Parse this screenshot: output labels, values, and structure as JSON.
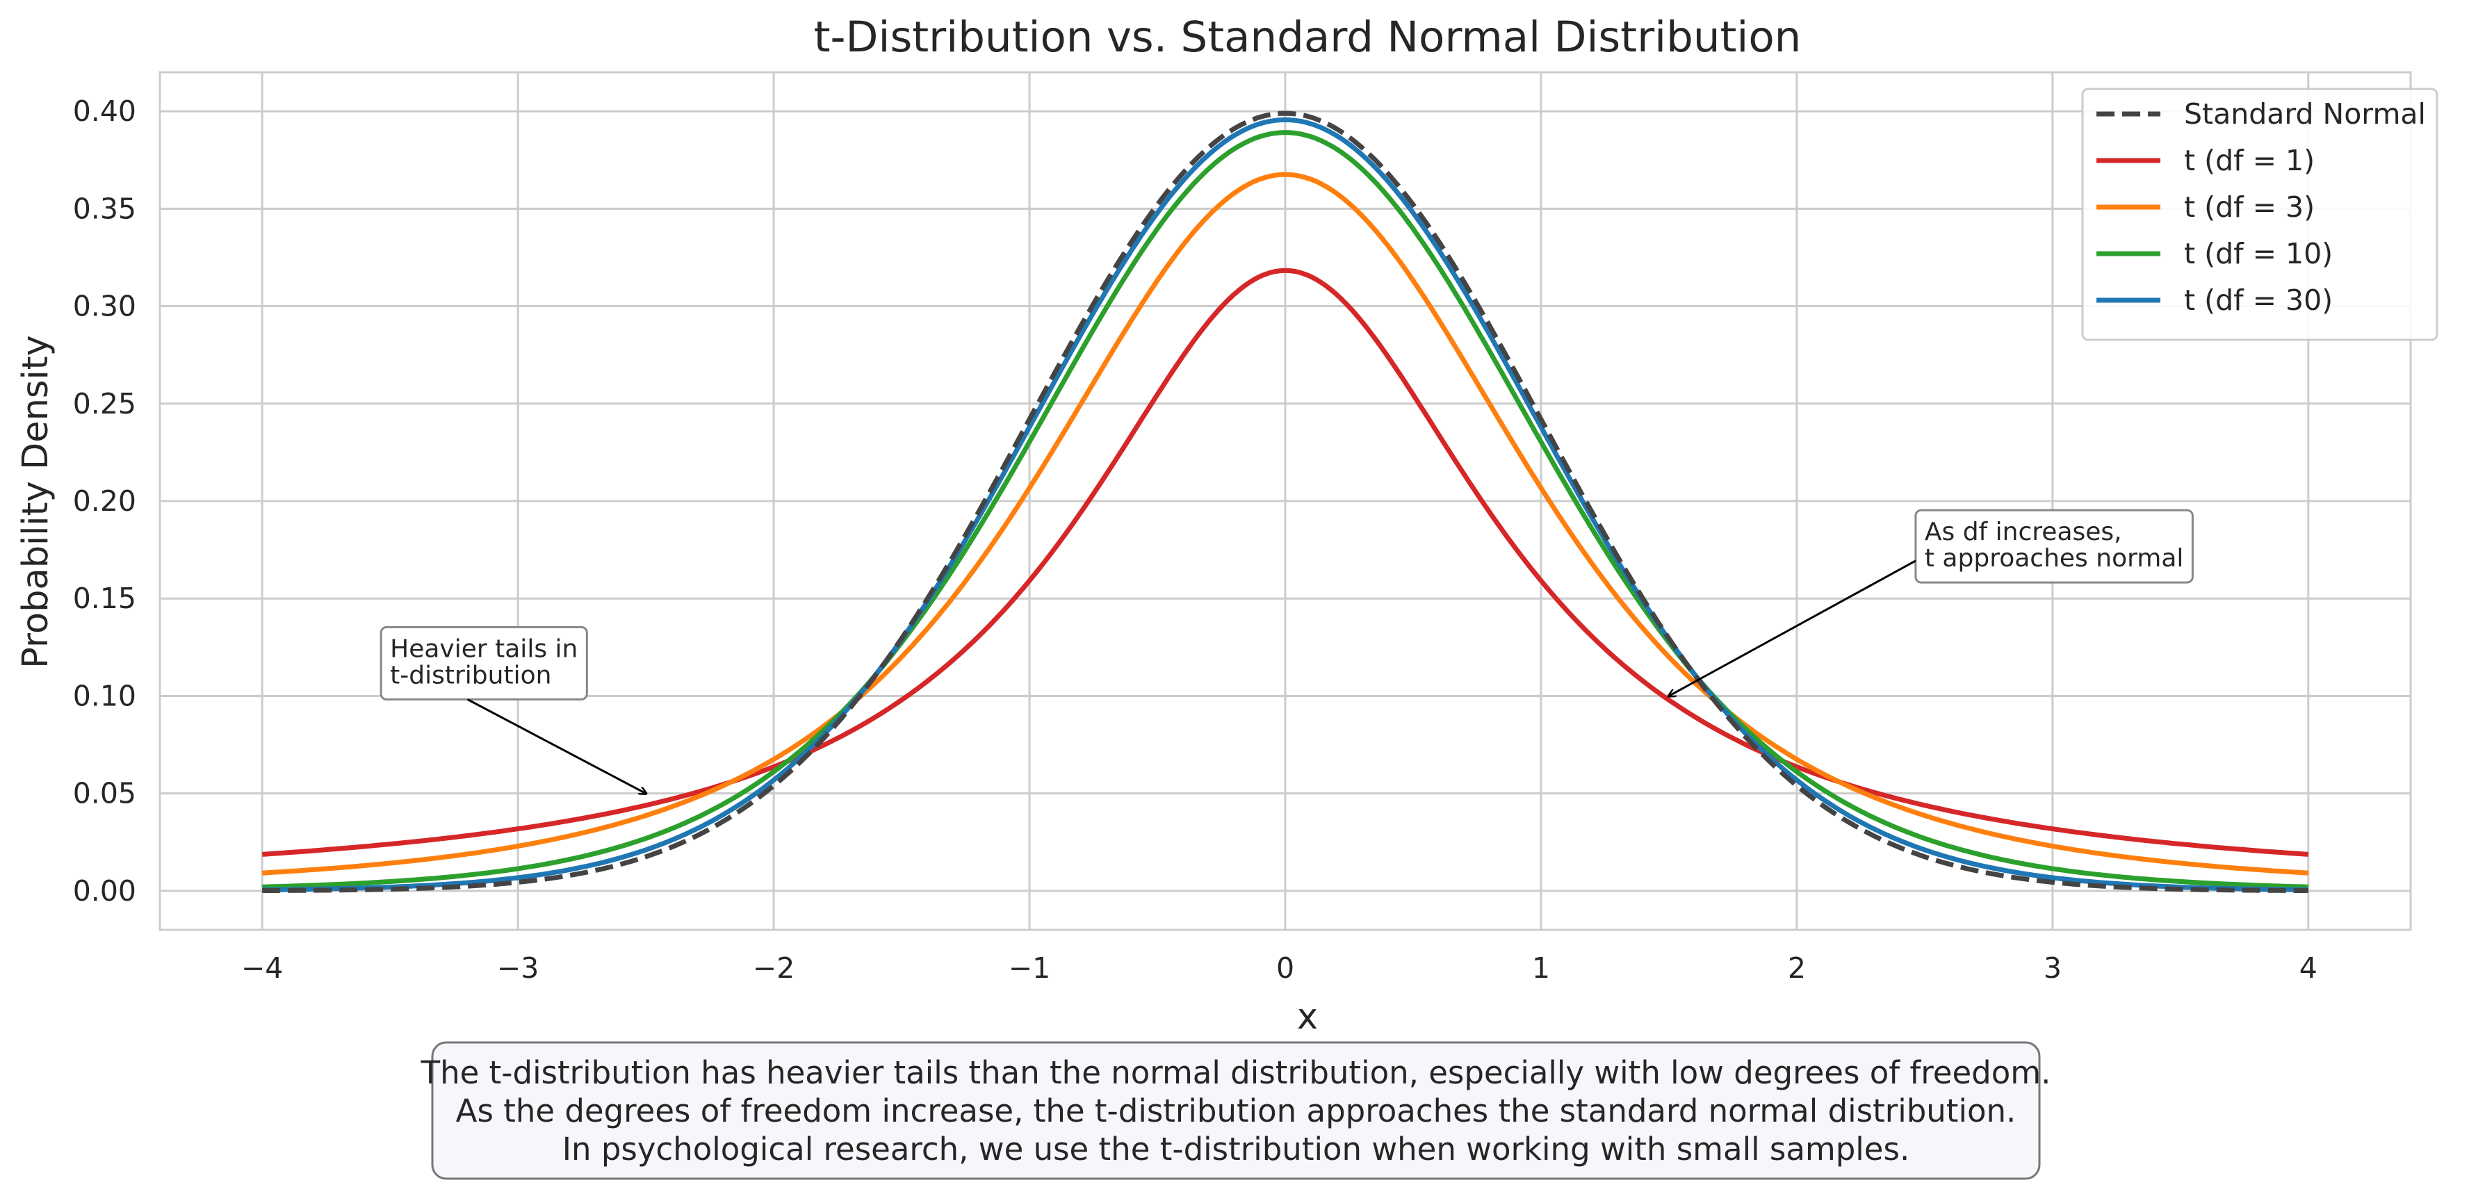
{
  "chart_data": {
    "type": "line",
    "title": "t-Distribution vs. Standard Normal Distribution",
    "xlabel": "x",
    "ylabel": "Probability Density",
    "xlim": [
      -4.4,
      4.4
    ],
    "ylim": [
      -0.02,
      0.42
    ],
    "grid": true,
    "legend_position": "top-right",
    "x_ticks": [
      -4,
      -3,
      -2,
      -1,
      0,
      1,
      2,
      3,
      4
    ],
    "x_tick_labels": [
      "−4",
      "−3",
      "−2",
      "−1",
      "0",
      "1",
      "2",
      "3",
      "4"
    ],
    "y_ticks": [
      0.0,
      0.05,
      0.1,
      0.15,
      0.2,
      0.25,
      0.3,
      0.35,
      0.4
    ],
    "y_tick_labels": [
      "0.00",
      "0.05",
      "0.10",
      "0.15",
      "0.20",
      "0.25",
      "0.30",
      "0.35",
      "0.40"
    ],
    "x_range": [
      -4,
      4
    ],
    "series": [
      {
        "name": "Standard Normal",
        "kind": "normal",
        "color": "#444444",
        "dashed": true
      },
      {
        "name": "t (df = 1)",
        "kind": "t",
        "df": 1,
        "color": "#d62728",
        "dashed": false
      },
      {
        "name": "t (df = 3)",
        "kind": "t",
        "df": 3,
        "color": "#ff7f0e",
        "dashed": false
      },
      {
        "name": "t (df = 10)",
        "kind": "t",
        "df": 10,
        "color": "#2ca02c",
        "dashed": false
      },
      {
        "name": "t (df = 30)",
        "kind": "t",
        "df": 30,
        "color": "#1f77b4",
        "dashed": false
      }
    ],
    "annotations": [
      {
        "lines": [
          "Heavier tails in",
          "t-distribution"
        ],
        "text_x": -3.5,
        "text_y": 0.12,
        "point_x": -2.5,
        "point_y": 0.05
      },
      {
        "lines": [
          "As df increases,",
          "t approaches normal"
        ],
        "text_x": 2.5,
        "text_y": 0.18,
        "point_x": 1.5,
        "point_y": 0.1
      }
    ],
    "caption": [
      "The t-distribution has heavier tails than the normal distribution, especially with low degrees of freedom.",
      "As the degrees of freedom increase, the t-distribution approaches the standard normal distribution.",
      "In psychological research, we use the t-distribution when working with small samples."
    ],
    "colors": {
      "grid": "#cccccc",
      "frame": "#cccccc",
      "caption_bg": "#f5f7fa",
      "caption_border": "#777777",
      "anno_border": "#888888"
    }
  }
}
